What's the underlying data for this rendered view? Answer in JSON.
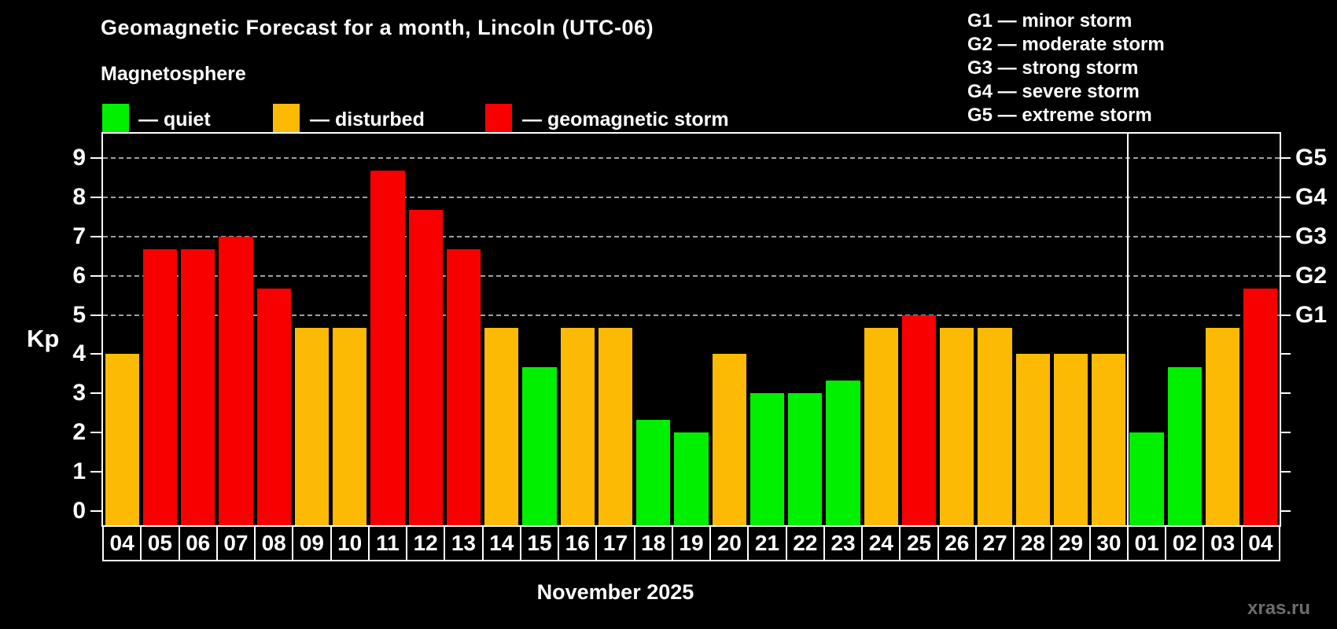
{
  "title": "Geomagnetic Forecast for a month, Lincoln (UTC-06)",
  "subtitle": "Magnetosphere",
  "legend": {
    "quiet_label": "— quiet",
    "disturbed_label": "— disturbed",
    "storm_label": "— geomagnetic storm"
  },
  "g_legend": [
    "G1 — minor storm",
    "G2 — moderate storm",
    "G3 — strong storm",
    "G4 — severe storm",
    "G5 — extreme storm"
  ],
  "watermark": "xras.ru",
  "chart_data": {
    "type": "bar",
    "title": "Geomagnetic Forecast for a month, Lincoln (UTC-06)",
    "xlabel": "November 2025",
    "ylabel": "Kp",
    "ylim": [
      0,
      9
    ],
    "y_ticks": [
      0,
      1,
      2,
      3,
      4,
      5,
      6,
      7,
      8,
      9
    ],
    "gridlines_at": [
      5,
      6,
      7,
      8,
      9
    ],
    "grid": "dashed horizontal at Kp 5-9 only",
    "right_axis": [
      {
        "kp": 9,
        "label": "G5"
      },
      {
        "kp": 8,
        "label": "G4"
      },
      {
        "kp": 7,
        "label": "G3"
      },
      {
        "kp": 6,
        "label": "G2"
      },
      {
        "kp": 5,
        "label": "G1"
      }
    ],
    "month_days_count": 27,
    "categories": [
      "04",
      "05",
      "06",
      "07",
      "08",
      "09",
      "10",
      "11",
      "12",
      "13",
      "14",
      "15",
      "16",
      "17",
      "18",
      "19",
      "20",
      "21",
      "22",
      "23",
      "24",
      "25",
      "26",
      "27",
      "28",
      "29",
      "30",
      "01",
      "02",
      "03",
      "04"
    ],
    "values": [
      4.0,
      6.67,
      6.67,
      7.0,
      5.67,
      4.67,
      4.67,
      8.67,
      7.67,
      6.67,
      4.67,
      3.67,
      4.67,
      4.67,
      2.33,
      2.0,
      4.0,
      3.0,
      3.0,
      3.33,
      4.67,
      5.0,
      4.67,
      4.67,
      4.0,
      4.0,
      4.0,
      2.0,
      3.67,
      4.67,
      5.67
    ],
    "status": [
      "disturbed",
      "storm",
      "storm",
      "storm",
      "storm",
      "disturbed",
      "disturbed",
      "storm",
      "storm",
      "storm",
      "disturbed",
      "quiet",
      "disturbed",
      "disturbed",
      "quiet",
      "quiet",
      "disturbed",
      "quiet",
      "quiet",
      "quiet",
      "disturbed",
      "storm",
      "disturbed",
      "disturbed",
      "disturbed",
      "disturbed",
      "disturbed",
      "quiet",
      "quiet",
      "disturbed",
      "storm"
    ],
    "colors": {
      "quiet": "#00f000",
      "disturbed": "#fcba04",
      "storm": "#f80000",
      "grid": "#a0a0a0",
      "frame": "#ffffff",
      "background": "#000000",
      "watermark": "#6d6d6d"
    }
  }
}
